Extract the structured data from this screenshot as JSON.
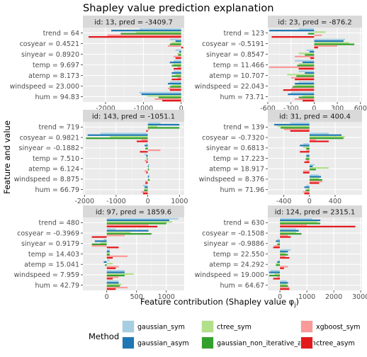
{
  "title": "Shapley value prediction explanation",
  "xlabel": "Feature contribution (Shapley value φ",
  "xlabel_sub": "j",
  "xlabel_end": ")",
  "ylabel": "Feature and value",
  "legend": {
    "title": "Method",
    "items": [
      {
        "name": "gaussian_sym",
        "color": "#a6cee3"
      },
      {
        "name": "gaussian_asym",
        "color": "#1f78b4"
      },
      {
        "name": "ctree_sym",
        "color": "#b2df8a"
      },
      {
        "name": "gaussian_non_iterative_asym",
        "color": "#33a02c"
      },
      {
        "name": "xgboost_sym",
        "color": "#fb9a99"
      },
      {
        "name": "ctree_asym",
        "color": "#e31a1c"
      }
    ]
  },
  "chart_data": [
    {
      "type": "bar",
      "orientation": "horizontal",
      "panel": "id: 13, pred = -3409.7",
      "features": [
        "trend = 64",
        "cosyear = 0.4521",
        "sinyear = 0.8920",
        "temp = 9.697",
        "atemp = 8.173",
        "windspeed = 23.000",
        "hum = 94.83"
      ],
      "xlim": [
        -2600,
        80
      ],
      "xticks": [
        -2000,
        -1000,
        0
      ],
      "xtick_labels": [
        "-2000",
        "-1000",
        "0"
      ],
      "series": [
        {
          "name": "gaussian_sym",
          "values": [
            -1100,
            -300,
            -150,
            -200,
            -200,
            -300,
            -1100
          ]
        },
        {
          "name": "gaussian_asym",
          "values": [
            -1850,
            -150,
            -50,
            -300,
            -250,
            -350,
            -1050
          ]
        },
        {
          "name": "ctree_sym",
          "values": [
            -1200,
            -250,
            -100,
            -200,
            -150,
            -250,
            -900
          ]
        },
        {
          "name": "gaussian_non_iterative_asym",
          "values": [
            -1600,
            -300,
            -80,
            -250,
            -250,
            -300,
            -600
          ]
        },
        {
          "name": "xgboost_sym",
          "values": [
            -1950,
            -350,
            -200,
            -100,
            -100,
            -350,
            -700
          ]
        },
        {
          "name": "ctree_asym",
          "values": [
            -2450,
            50,
            -150,
            -200,
            -250,
            -300,
            -500
          ]
        }
      ]
    },
    {
      "type": "bar",
      "orientation": "horizontal",
      "panel": "id: 23, pred = -876.2",
      "features": [
        "trend = 123",
        "cosyear = -0.5191",
        "sinyear = 0.8547",
        "temp = 11.466",
        "atemp = 10.707",
        "windspeed = 22.043",
        "hum = 73.71"
      ],
      "xlim": [
        -600,
        620
      ],
      "xticks": [
        -600,
        -300,
        0,
        300,
        600
      ],
      "xtick_labels": [
        "-600",
        "-300",
        "0",
        "300",
        "600"
      ],
      "series": [
        {
          "name": "gaussian_sym",
          "values": [
            -200,
            400,
            -100,
            -250,
            -200,
            -200,
            -300
          ]
        },
        {
          "name": "gaussian_asym",
          "values": [
            -580,
            380,
            -60,
            -150,
            -120,
            -250,
            -340
          ]
        },
        {
          "name": "ctree_sym",
          "values": [
            150,
            450,
            -200,
            -200,
            -350,
            -250,
            -150
          ]
        },
        {
          "name": "gaussian_non_iterative_asym",
          "values": [
            -80,
            520,
            -120,
            -220,
            -230,
            -280,
            -200
          ]
        },
        {
          "name": "xgboost_sym",
          "values": [
            100,
            300,
            -250,
            -580,
            -300,
            -300,
            -250
          ]
        },
        {
          "name": "ctree_asym",
          "values": [
            -550,
            50,
            -50,
            -200,
            -250,
            -400,
            -150
          ]
        }
      ]
    },
    {
      "type": "bar",
      "orientation": "horizontal",
      "panel": "id: 143, pred = -1051.1",
      "features": [
        "trend = 719",
        "cosyear = 0.9821",
        "sinyear = -0.1882",
        "temp = 7.510",
        "atemp = 6.124",
        "windspeed = 8.875",
        "hum = 66.79"
      ],
      "xlim": [
        -2050,
        1150
      ],
      "xticks": [
        -2000,
        -1000,
        0,
        1000
      ],
      "xtick_labels": [
        "-2000",
        "-1000",
        "0",
        "1000"
      ],
      "series": [
        {
          "name": "gaussian_sym",
          "values": [
            400,
            -1500,
            -50,
            -100,
            50,
            50,
            -150
          ]
        },
        {
          "name": "gaussian_asym",
          "values": [
            1000,
            -1900,
            -100,
            -50,
            30,
            40,
            -100
          ]
        },
        {
          "name": "ctree_sym",
          "values": [
            300,
            -1200,
            -50,
            -50,
            30,
            20,
            -100
          ]
        },
        {
          "name": "gaussian_non_iterative_asym",
          "values": [
            1000,
            -1950,
            -80,
            -30,
            40,
            60,
            -120
          ]
        },
        {
          "name": "xgboost_sym",
          "values": [
            50,
            -200,
            400,
            -100,
            -100,
            -80,
            -200
          ]
        },
        {
          "name": "ctree_asym",
          "values": [
            -50,
            -350,
            -250,
            -50,
            -50,
            -80,
            -150
          ]
        }
      ]
    },
    {
      "type": "bar",
      "orientation": "horizontal",
      "panel": "id: 31, pred =  400.4",
      "features": [
        "trend = 139",
        "cosyear = -0.7320",
        "sinyear = 0.6813",
        "temp = 17.223",
        "atemp = 18.917",
        "windspeed = 8.376",
        "hum = 71.96"
      ],
      "xlim": [
        -650,
        820
      ],
      "xticks": [
        -400,
        0,
        400
      ],
      "xtick_labels": [
        "-400",
        "0",
        "400"
      ],
      "series": [
        {
          "name": "gaussian_sym",
          "values": [
            -300,
            300,
            -100,
            -50,
            80,
            150,
            -50
          ]
        },
        {
          "name": "gaussian_asym",
          "values": [
            -550,
            500,
            -150,
            -50,
            50,
            180,
            -80
          ]
        },
        {
          "name": "ctree_sym",
          "values": [
            -500,
            550,
            -100,
            -50,
            300,
            150,
            -30
          ]
        },
        {
          "name": "gaussian_non_iterative_asym",
          "values": [
            -450,
            530,
            -50,
            -60,
            100,
            200,
            -60
          ]
        },
        {
          "name": "xgboost_sym",
          "values": [
            -400,
            100,
            -50,
            -50,
            -100,
            200,
            -100
          ]
        },
        {
          "name": "ctree_asym",
          "values": [
            -300,
            300,
            -150,
            -80,
            -100,
            150,
            -80
          ]
        }
      ]
    },
    {
      "type": "bar",
      "orientation": "horizontal",
      "panel": "id: 97, pred =  1859.6",
      "features": [
        "trend = 480",
        "cosyear = -0.3969",
        "sinyear = 0.9179",
        "temp = 14.403",
        "atemp = 15.041",
        "windspeed = 7.959",
        "hum = 42.79"
      ],
      "xlim": [
        -400,
        1300
      ],
      "xticks": [
        0,
        500,
        1000
      ],
      "xtick_labels": [
        "0",
        "500",
        "1000"
      ],
      "series": [
        {
          "name": "gaussian_sym",
          "values": [
            1200,
            150,
            -50,
            50,
            50,
            300,
            200
          ]
        },
        {
          "name": "gaussian_asym",
          "values": [
            1050,
            700,
            -200,
            50,
            -50,
            300,
            200
          ]
        },
        {
          "name": "ctree_sym",
          "values": [
            1100,
            400,
            -100,
            50,
            100,
            450,
            250
          ]
        },
        {
          "name": "gaussian_non_iterative_asym",
          "values": [
            1000,
            750,
            -250,
            50,
            -30,
            300,
            220
          ]
        },
        {
          "name": "xgboost_sym",
          "values": [
            700,
            300,
            -250,
            350,
            200,
            200,
            350
          ]
        },
        {
          "name": "ctree_asym",
          "values": [
            850,
            -250,
            200,
            100,
            150,
            100,
            150
          ]
        }
      ]
    },
    {
      "type": "bar",
      "orientation": "horizontal",
      "panel": "id: 124, pred =  2315.1",
      "features": [
        "trend = 630",
        "cosyear = -0.1508",
        "sinyear = -0.9886",
        "temp = 22.550",
        "atemp = 24.292",
        "windspeed = 19.000",
        "hum = 64.67"
      ],
      "xlim": [
        -450,
        3050
      ],
      "xticks": [
        0,
        1000,
        2000,
        3000
      ],
      "xtick_labels": [
        "0",
        "1000",
        "2000",
        "3000"
      ],
      "series": [
        {
          "name": "gaussian_sym",
          "values": [
            1200,
            600,
            -100,
            400,
            -50,
            -350,
            250
          ]
        },
        {
          "name": "gaussian_asym",
          "values": [
            1500,
            700,
            -150,
            300,
            -100,
            -400,
            300
          ]
        },
        {
          "name": "ctree_sym",
          "values": [
            1400,
            600,
            -50,
            200,
            -150,
            -200,
            250
          ]
        },
        {
          "name": "gaussian_non_iterative_asym",
          "values": [
            1500,
            800,
            -100,
            300,
            -150,
            -400,
            300
          ]
        },
        {
          "name": "xgboost_sym",
          "values": [
            1000,
            300,
            -200,
            200,
            300,
            -100,
            350
          ]
        },
        {
          "name": "ctree_asym",
          "values": [
            2800,
            400,
            -250,
            350,
            150,
            -250,
            350
          ]
        }
      ]
    }
  ]
}
